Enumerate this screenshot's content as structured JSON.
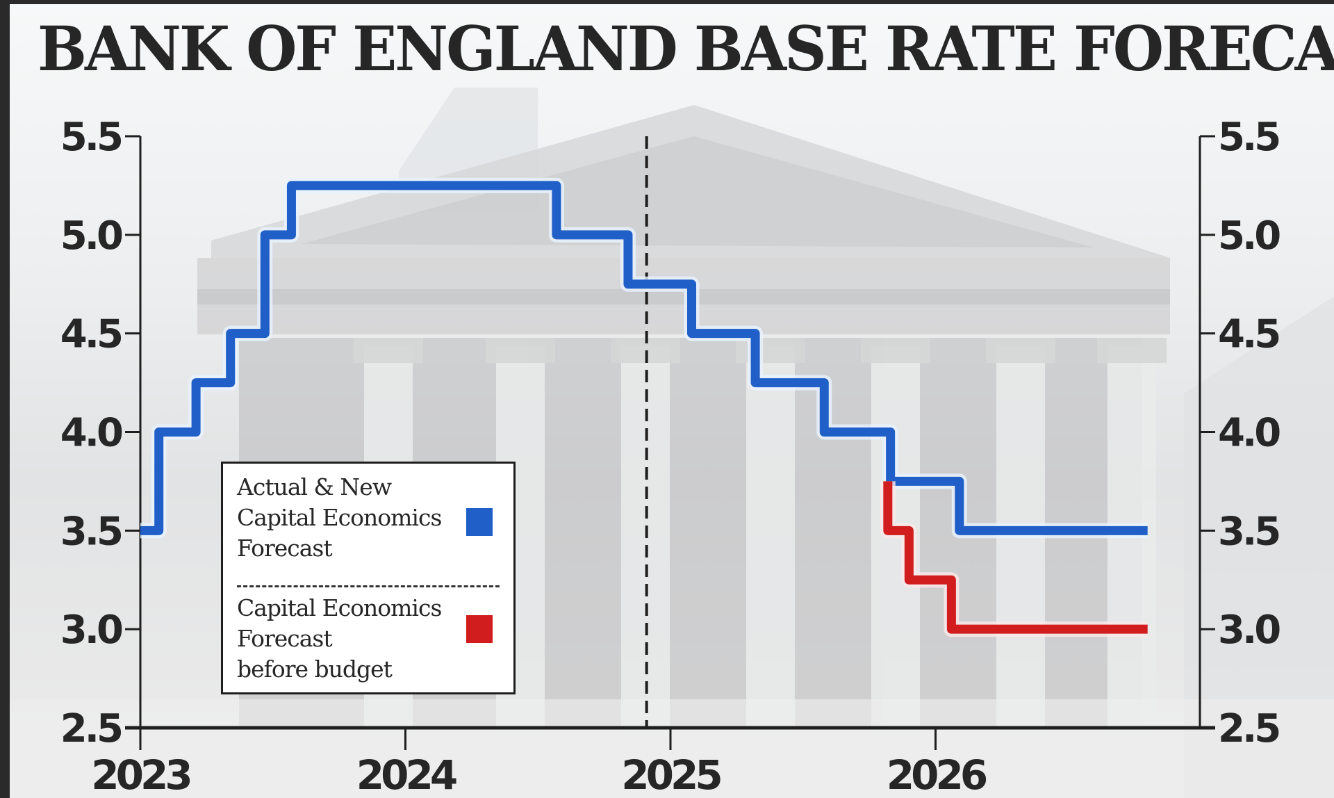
{
  "title": "BANK OF ENGLAND BASE RATE FORECAST",
  "colors": {
    "actual_new": "#1f5fc7",
    "before_budget": "#d11d1d",
    "axis": "#1e1e1e",
    "text": "#262626"
  },
  "legend": {
    "entries": [
      {
        "label_lines": [
          "Actual & New",
          "Capital Economics",
          "Forecast"
        ],
        "color": "#1f5fc7"
      },
      {
        "label_lines": [
          "Capital Economics",
          "Forecast",
          "before budget"
        ],
        "color": "#d11d1d"
      }
    ]
  },
  "chart_data": {
    "type": "line",
    "step": true,
    "title": "BANK OF ENGLAND BASE RATE FORECAST",
    "xlabel": "",
    "ylabel": "",
    "x_ticks": [
      "2023",
      "2024",
      "2025",
      "2026"
    ],
    "y_ticks_left": [
      "5.5",
      "5.0",
      "4.5",
      "4.0",
      "3.5",
      "3.0",
      "2.5"
    ],
    "y_ticks_right": [
      "5.5",
      "5.0",
      "4.5",
      "4.0",
      "3.5",
      "3.0",
      "2.5"
    ],
    "xlim": [
      2023.0,
      2026.8
    ],
    "ylim": [
      2.5,
      5.5
    ],
    "grid": false,
    "legend_position": "lower-left",
    "annotations": [
      {
        "type": "vertical-dashed-line",
        "x": 2024.91,
        "meaning": "budget / present"
      }
    ],
    "series": [
      {
        "name": "Actual & New Capital Economics Forecast",
        "color": "#1f5fc7",
        "x": [
          2023.0,
          2023.07,
          2023.21,
          2023.34,
          2023.47,
          2023.57,
          2024.57,
          2024.84,
          2025.08,
          2025.32,
          2025.58,
          2025.83,
          2026.09
        ],
        "values": [
          3.5,
          4.0,
          4.25,
          4.5,
          5.0,
          5.25,
          5.0,
          4.75,
          4.5,
          4.25,
          4.0,
          3.75,
          3.5
        ],
        "end_x": 2026.8
      },
      {
        "name": "Capital Economics Forecast before budget",
        "color": "#d11d1d",
        "x": [
          2025.82,
          2025.9,
          2026.06
        ],
        "values": [
          3.5,
          3.25,
          3.0
        ],
        "start_value": 3.75,
        "end_x": 2026.8
      }
    ]
  }
}
